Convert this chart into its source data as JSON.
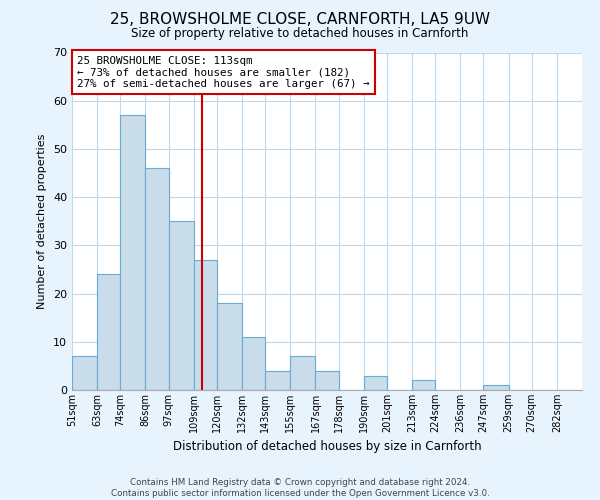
{
  "title": "25, BROWSHOLME CLOSE, CARNFORTH, LA5 9UW",
  "subtitle": "Size of property relative to detached houses in Carnforth",
  "xlabel": "Distribution of detached houses by size in Carnforth",
  "ylabel": "Number of detached properties",
  "bin_labels": [
    "51sqm",
    "63sqm",
    "74sqm",
    "86sqm",
    "97sqm",
    "109sqm",
    "120sqm",
    "132sqm",
    "143sqm",
    "155sqm",
    "167sqm",
    "178sqm",
    "190sqm",
    "201sqm",
    "213sqm",
    "224sqm",
    "236sqm",
    "247sqm",
    "259sqm",
    "270sqm",
    "282sqm"
  ],
  "bin_edges": [
    51,
    63,
    74,
    86,
    97,
    109,
    120,
    132,
    143,
    155,
    167,
    178,
    190,
    201,
    213,
    224,
    236,
    247,
    259,
    270,
    282,
    294
  ],
  "counts": [
    7,
    24,
    57,
    46,
    35,
    27,
    18,
    11,
    4,
    7,
    4,
    0,
    3,
    0,
    2,
    0,
    0,
    1,
    0,
    0,
    0
  ],
  "bar_color": "#c8dcea",
  "bar_edge_color": "#6aaad4",
  "vline_x": 113,
  "vline_color": "#cc0000",
  "annotation_text": "25 BROWSHOLME CLOSE: 113sqm\n← 73% of detached houses are smaller (182)\n27% of semi-detached houses are larger (67) →",
  "annotation_box_edge_color": "#cc0000",
  "ylim": [
    0,
    70
  ],
  "yticks": [
    0,
    10,
    20,
    30,
    40,
    50,
    60,
    70
  ],
  "footer_text": "Contains HM Land Registry data © Crown copyright and database right 2024.\nContains public sector information licensed under the Open Government Licence v3.0.",
  "background_color": "#e8f4fd",
  "plot_bg_color": "#ffffff",
  "grid_color": "#c0d8ec"
}
